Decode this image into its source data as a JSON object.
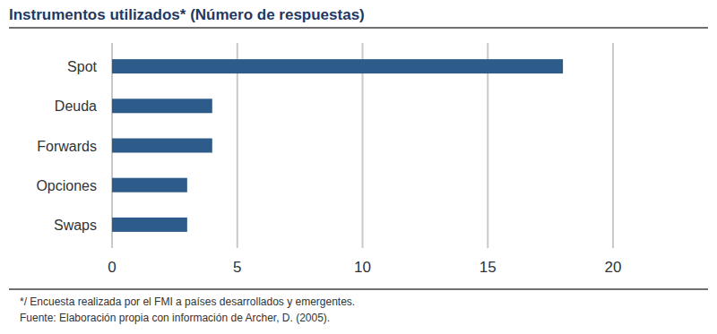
{
  "chart_data": {
    "type": "bar",
    "orientation": "horizontal",
    "title": "Instrumentos utilizados* (Número de respuestas)",
    "categories": [
      "Spot",
      "Deuda",
      "Forwards",
      "Opciones",
      "Swaps"
    ],
    "values": [
      18,
      4,
      4,
      3,
      3
    ],
    "color": "#2e5c8a",
    "xlim": [
      0,
      20
    ],
    "xticks": [
      0,
      5,
      10,
      15,
      20
    ],
    "grid": true,
    "annotations": [
      "*/ Encuesta realizada por el FMI a países desarrollados y emergentes.",
      "Fuente: Elaboración propia con información de Archer, D. (2005)."
    ]
  }
}
